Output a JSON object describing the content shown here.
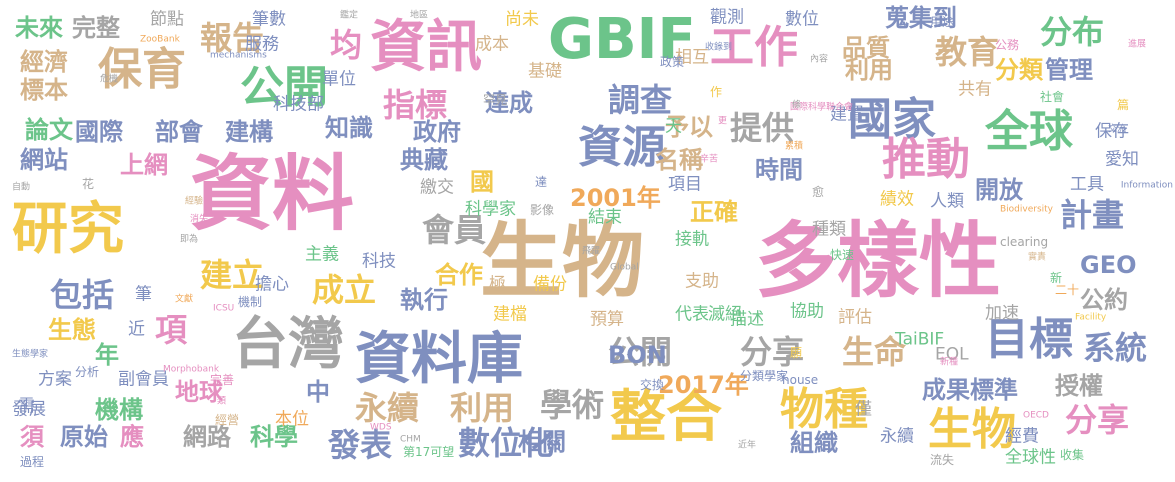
{
  "palette": {
    "pink": "#e58fc0",
    "slate": "#7f8fbf",
    "gold": "#f2c94c",
    "tan": "#d5b48a",
    "green": "#6cc48a",
    "gray": "#a5a5a5",
    "orange": "#f0a95a"
  },
  "words": [
    {
      "text": "資料",
      "color": "pink",
      "size": "xxl"
    },
    {
      "text": "生物",
      "color": "tan",
      "size": "xxl"
    },
    {
      "text": "多樣性",
      "color": "pink",
      "size": "xxl"
    },
    {
      "text": "研究",
      "color": "gold",
      "size": "xl"
    },
    {
      "text": "資料庫",
      "color": "slate",
      "size": "xl"
    },
    {
      "text": "資訊",
      "color": "pink",
      "size": "xl"
    },
    {
      "text": "GBIF",
      "color": "green",
      "size": "xl"
    },
    {
      "text": "整合",
      "color": "gold",
      "size": "xl"
    },
    {
      "text": "台灣",
      "color": "gray",
      "size": "xl"
    },
    {
      "text": "全球",
      "color": "green",
      "size": "l"
    },
    {
      "text": "工作",
      "color": "pink",
      "size": "l"
    },
    {
      "text": "國家",
      "color": "slate",
      "size": "l"
    },
    {
      "text": "推動",
      "color": "pink",
      "size": "l"
    },
    {
      "text": "保育",
      "color": "tan",
      "size": "l"
    },
    {
      "text": "資源",
      "color": "slate",
      "size": "l"
    },
    {
      "text": "目標",
      "color": "slate",
      "size": "l"
    },
    {
      "text": "物種",
      "color": "gold",
      "size": "l"
    },
    {
      "text": "生物",
      "color": "gold",
      "size": "l"
    },
    {
      "text": "公開",
      "color": "green",
      "size": "l"
    },
    {
      "text": "報告",
      "color": "tan",
      "size": "m"
    },
    {
      "text": "均",
      "color": "pink",
      "size": "m"
    },
    {
      "text": "指標",
      "color": "pink",
      "size": "m"
    },
    {
      "text": "分布",
      "color": "green",
      "size": "m"
    },
    {
      "text": "教育",
      "color": "tan",
      "size": "m"
    },
    {
      "text": "計畫",
      "color": "slate",
      "size": "m"
    },
    {
      "text": "分享",
      "color": "pink",
      "size": "m"
    },
    {
      "text": "包括",
      "color": "slate",
      "size": "m"
    },
    {
      "text": "項",
      "color": "pink",
      "size": "m"
    },
    {
      "text": "建立",
      "color": "gold",
      "size": "m"
    },
    {
      "text": "成立",
      "color": "gold",
      "size": "m"
    },
    {
      "text": "提供",
      "color": "gray",
      "size": "m"
    },
    {
      "text": "調查",
      "color": "slate",
      "size": "m"
    },
    {
      "text": "會員",
      "color": "gray",
      "size": "m"
    },
    {
      "text": "公開",
      "color": "gray",
      "size": "m"
    },
    {
      "text": "分享",
      "color": "gray",
      "size": "m"
    },
    {
      "text": "學術",
      "color": "gray",
      "size": "m"
    },
    {
      "text": "永續",
      "color": "tan",
      "size": "m"
    },
    {
      "text": "利用",
      "color": "tan",
      "size": "m"
    },
    {
      "text": "數位化",
      "color": "slate",
      "size": "m"
    },
    {
      "text": "發表",
      "color": "slate",
      "size": "m"
    },
    {
      "text": "生命",
      "color": "tan",
      "size": "m"
    },
    {
      "text": "成果標準",
      "color": "slate",
      "size": "s"
    },
    {
      "text": "系統",
      "color": "slate",
      "size": "m"
    },
    {
      "text": "管理",
      "color": "slate",
      "size": "s"
    },
    {
      "text": "分類",
      "color": "gold",
      "size": "s"
    },
    {
      "text": "利用",
      "color": "tan",
      "size": "s"
    },
    {
      "text": "品質",
      "color": "tan",
      "size": "s"
    },
    {
      "text": "蒐集到",
      "color": "slate",
      "size": "s"
    },
    {
      "text": "完整",
      "color": "gray",
      "size": "s"
    },
    {
      "text": "未來",
      "color": "green",
      "size": "s"
    },
    {
      "text": "經濟",
      "color": "tan",
      "size": "s"
    },
    {
      "text": "標本",
      "color": "tan",
      "size": "s"
    },
    {
      "text": "論文",
      "color": "green",
      "size": "s"
    },
    {
      "text": "國際",
      "color": "slate",
      "size": "s"
    },
    {
      "text": "部會",
      "color": "slate",
      "size": "s"
    },
    {
      "text": "建構",
      "color": "slate",
      "size": "s"
    },
    {
      "text": "網站",
      "color": "slate",
      "size": "s"
    },
    {
      "text": "上網",
      "color": "pink",
      "size": "s"
    },
    {
      "text": "國",
      "color": "gold",
      "size": "s"
    },
    {
      "text": "2001年",
      "color": "orange",
      "size": "s"
    },
    {
      "text": "2017年",
      "color": "orange",
      "size": "s"
    },
    {
      "text": "典藏",
      "color": "slate",
      "size": "s"
    },
    {
      "text": "政府",
      "color": "slate",
      "size": "s"
    },
    {
      "text": "達成",
      "color": "slate",
      "size": "s"
    },
    {
      "text": "知識",
      "color": "slate",
      "size": "s"
    },
    {
      "text": "時間",
      "color": "slate",
      "size": "s"
    },
    {
      "text": "開放",
      "color": "slate",
      "size": "s"
    },
    {
      "text": "執行",
      "color": "slate",
      "size": "s"
    },
    {
      "text": "合作",
      "color": "gold",
      "size": "s"
    },
    {
      "text": "生態",
      "color": "gold",
      "size": "s"
    },
    {
      "text": "年",
      "color": "green",
      "size": "s"
    },
    {
      "text": "機構",
      "color": "green",
      "size": "s"
    },
    {
      "text": "地球",
      "color": "pink",
      "size": "s"
    },
    {
      "text": "中",
      "color": "slate",
      "size": "s"
    },
    {
      "text": "須",
      "color": "pink",
      "size": "s"
    },
    {
      "text": "原始",
      "color": "slate",
      "size": "s"
    },
    {
      "text": "應",
      "color": "pink",
      "size": "s"
    },
    {
      "text": "網路",
      "color": "gray",
      "size": "s"
    },
    {
      "text": "科學",
      "color": "green",
      "size": "s"
    },
    {
      "text": "相關",
      "color": "slate",
      "size": "s"
    },
    {
      "text": "組織",
      "color": "slate",
      "size": "s"
    },
    {
      "text": "BON",
      "color": "slate",
      "size": "s"
    },
    {
      "text": "授權",
      "color": "gray",
      "size": "s"
    },
    {
      "text": "公約",
      "color": "gray",
      "size": "s"
    },
    {
      "text": "GEO",
      "color": "slate",
      "size": "s"
    },
    {
      "text": "正確",
      "color": "gold",
      "size": "s"
    },
    {
      "text": "予以",
      "color": "tan",
      "size": "s"
    },
    {
      "text": "名稱",
      "color": "tan",
      "size": "s"
    },
    {
      "text": "項目",
      "color": "slate",
      "size": "xs"
    },
    {
      "text": "觀測",
      "color": "slate",
      "size": "xs"
    },
    {
      "text": "相互",
      "color": "tan",
      "size": "xs"
    },
    {
      "text": "節點",
      "color": "gray",
      "size": "xs"
    },
    {
      "text": "筆數",
      "color": "slate",
      "size": "xs"
    },
    {
      "text": "服務",
      "color": "slate",
      "size": "xs"
    },
    {
      "text": "單位",
      "color": "slate",
      "size": "xs"
    },
    {
      "text": "科技部",
      "color": "slate",
      "size": "xs"
    },
    {
      "text": "基礎",
      "color": "tan",
      "size": "xs"
    },
    {
      "text": "成本",
      "color": "tan",
      "size": "xs"
    },
    {
      "text": "尚未",
      "color": "gold",
      "size": "xs"
    },
    {
      "text": "數位",
      "color": "slate",
      "size": "xs"
    },
    {
      "text": "共有",
      "color": "tan",
      "size": "xs"
    },
    {
      "text": "天",
      "color": "green",
      "size": "xs"
    },
    {
      "text": "建置",
      "color": "slate",
      "size": "xs"
    },
    {
      "text": "保存",
      "color": "slate",
      "size": "xs"
    },
    {
      "text": "愛知",
      "color": "slate",
      "size": "xs"
    },
    {
      "text": "工具",
      "color": "slate",
      "size": "xs"
    },
    {
      "text": "績效",
      "color": "gold",
      "size": "xs"
    },
    {
      "text": "人類",
      "color": "slate",
      "size": "xs"
    },
    {
      "text": "種類",
      "color": "gray",
      "size": "xs"
    },
    {
      "text": "繳交",
      "color": "gray",
      "size": "xs"
    },
    {
      "text": "科學家",
      "color": "green",
      "size": "xs"
    },
    {
      "text": "主義",
      "color": "green",
      "size": "xs"
    },
    {
      "text": "科技",
      "color": "slate",
      "size": "xs"
    },
    {
      "text": "筆",
      "color": "slate",
      "size": "xs"
    },
    {
      "text": "擔心",
      "color": "slate",
      "size": "xs"
    },
    {
      "text": "近",
      "color": "slate",
      "size": "xs"
    },
    {
      "text": "方案",
      "color": "slate",
      "size": "xs"
    },
    {
      "text": "副會員",
      "color": "slate",
      "size": "xs"
    },
    {
      "text": "需",
      "color": "slate",
      "size": "xs"
    },
    {
      "text": "發展",
      "color": "slate",
      "size": "xs"
    },
    {
      "text": "本位",
      "color": "orange",
      "size": "xs"
    },
    {
      "text": "結束",
      "color": "green",
      "size": "xs"
    },
    {
      "text": "接軌",
      "color": "green",
      "size": "xs"
    },
    {
      "text": "代表",
      "color": "green",
      "size": "xs"
    },
    {
      "text": "滅絕",
      "color": "green",
      "size": "xs"
    },
    {
      "text": "描述",
      "color": "green",
      "size": "xs"
    },
    {
      "text": "協助",
      "color": "green",
      "size": "xs"
    },
    {
      "text": "評估",
      "color": "tan",
      "size": "xs"
    },
    {
      "text": "TaiBIF",
      "color": "green",
      "size": "xs"
    },
    {
      "text": "加速",
      "color": "gray",
      "size": "xs"
    },
    {
      "text": "EOL",
      "color": "gray",
      "size": "xs"
    },
    {
      "text": "預算",
      "color": "tan",
      "size": "xs"
    },
    {
      "text": "建檔",
      "color": "gold",
      "size": "xs"
    },
    {
      "text": "備份",
      "color": "gold",
      "size": "xs"
    },
    {
      "text": "極",
      "color": "tan",
      "size": "xs"
    },
    {
      "text": "支助",
      "color": "tan",
      "size": "xs"
    },
    {
      "text": "僅",
      "color": "gray",
      "size": "xs"
    },
    {
      "text": "永續",
      "color": "slate",
      "size": "xs"
    },
    {
      "text": "經費",
      "color": "slate",
      "size": "xs"
    },
    {
      "text": "全球性",
      "color": "green",
      "size": "xs"
    },
    {
      "text": "收集",
      "color": "green",
      "size": "tiny"
    },
    {
      "text": "作",
      "color": "gold",
      "size": "tiny"
    },
    {
      "text": "罕見",
      "color": "gray",
      "size": "tiny"
    },
    {
      "text": "政策",
      "color": "slate",
      "size": "tiny"
    },
    {
      "text": "用途",
      "color": "slate",
      "size": "tiny"
    },
    {
      "text": "公務",
      "color": "pink",
      "size": "tiny"
    },
    {
      "text": "社會",
      "color": "green",
      "size": "tiny"
    },
    {
      "text": "篇",
      "color": "gold",
      "size": "tiny"
    },
    {
      "text": "達",
      "color": "slate",
      "size": "tiny"
    },
    {
      "text": "花",
      "color": "gray",
      "size": "tiny"
    },
    {
      "text": "影像",
      "color": "gray",
      "size": "tiny"
    },
    {
      "text": "快速",
      "color": "green",
      "size": "tiny"
    },
    {
      "text": "新",
      "color": "green",
      "size": "tiny"
    },
    {
      "text": "二十",
      "color": "orange",
      "size": "tiny"
    },
    {
      "text": "分析",
      "color": "slate",
      "size": "tiny"
    },
    {
      "text": "交換",
      "color": "slate",
      "size": "tiny"
    },
    {
      "text": "分類學家",
      "color": "slate",
      "size": "tiny"
    },
    {
      "text": "house",
      "color": "slate",
      "size": "tiny"
    },
    {
      "text": "完善",
      "color": "pink",
      "size": "tiny"
    },
    {
      "text": "機制",
      "color": "slate",
      "size": "tiny"
    },
    {
      "text": "經營",
      "color": "tan",
      "size": "tiny"
    },
    {
      "text": "過程",
      "color": "slate",
      "size": "tiny"
    },
    {
      "text": "第17可望",
      "color": "green",
      "size": "tiny"
    },
    {
      "text": "流失",
      "color": "gray",
      "size": "tiny"
    },
    {
      "text": "願",
      "color": "gold",
      "size": "tiny"
    },
    {
      "text": "愈",
      "color": "gray",
      "size": "tiny"
    },
    {
      "text": "clearing",
      "color": "gray",
      "size": "tiny"
    },
    {
      "text": "Information",
      "color": "slate",
      "size": "micro"
    },
    {
      "text": "地區",
      "color": "gray",
      "size": "micro"
    },
    {
      "text": "鑑定",
      "color": "gray",
      "size": "micro"
    },
    {
      "text": "ZooBank",
      "color": "orange",
      "size": "micro"
    },
    {
      "text": "mechanisms",
      "color": "slate",
      "size": "micro"
    },
    {
      "text": "危機",
      "color": "gray",
      "size": "micro"
    },
    {
      "text": "進展",
      "color": "pink",
      "size": "micro"
    },
    {
      "text": "收錄到",
      "color": "slate",
      "size": "micro"
    },
    {
      "text": "更",
      "color": "pink",
      "size": "micro"
    },
    {
      "text": "國際科學聯合會",
      "color": "pink",
      "size": "micro"
    },
    {
      "text": "條",
      "color": "gray",
      "size": "micro"
    },
    {
      "text": "交流",
      "color": "slate",
      "size": "micro"
    },
    {
      "text": "累積",
      "color": "orange",
      "size": "micro"
    },
    {
      "text": "辛苦",
      "color": "pink",
      "size": "micro"
    },
    {
      "text": "Biodiversity",
      "color": "orange",
      "size": "micro"
    },
    {
      "text": "自動",
      "color": "gray",
      "size": "micro"
    },
    {
      "text": "經驗",
      "color": "tan",
      "size": "micro"
    },
    {
      "text": "消失",
      "color": "pink",
      "size": "micro"
    },
    {
      "text": "即為",
      "color": "gray",
      "size": "micro"
    },
    {
      "text": "飛躍",
      "color": "gray",
      "size": "micro"
    },
    {
      "text": "Global",
      "color": "gray",
      "size": "micro"
    },
    {
      "text": "實責",
      "color": "tan",
      "size": "micro"
    },
    {
      "text": "文獻",
      "color": "orange",
      "size": "micro"
    },
    {
      "text": "ICSU",
      "color": "pink",
      "size": "micro"
    },
    {
      "text": "生態學家",
      "color": "slate",
      "size": "micro"
    },
    {
      "text": "Morphobank",
      "color": "pink",
      "size": "micro"
    },
    {
      "text": "類",
      "color": "pink",
      "size": "micro"
    },
    {
      "text": "WDS",
      "color": "pink",
      "size": "micro"
    },
    {
      "text": "CHM",
      "color": "gray",
      "size": "micro"
    },
    {
      "text": "OECD",
      "color": "pink",
      "size": "micro"
    },
    {
      "text": "近年",
      "color": "gray",
      "size": "micro"
    },
    {
      "text": "新種",
      "color": "pink",
      "size": "micro"
    },
    {
      "text": "Facility",
      "color": "gold",
      "size": "micro"
    },
    {
      "text": "內容",
      "color": "gray",
      "size": "micro"
    }
  ]
}
